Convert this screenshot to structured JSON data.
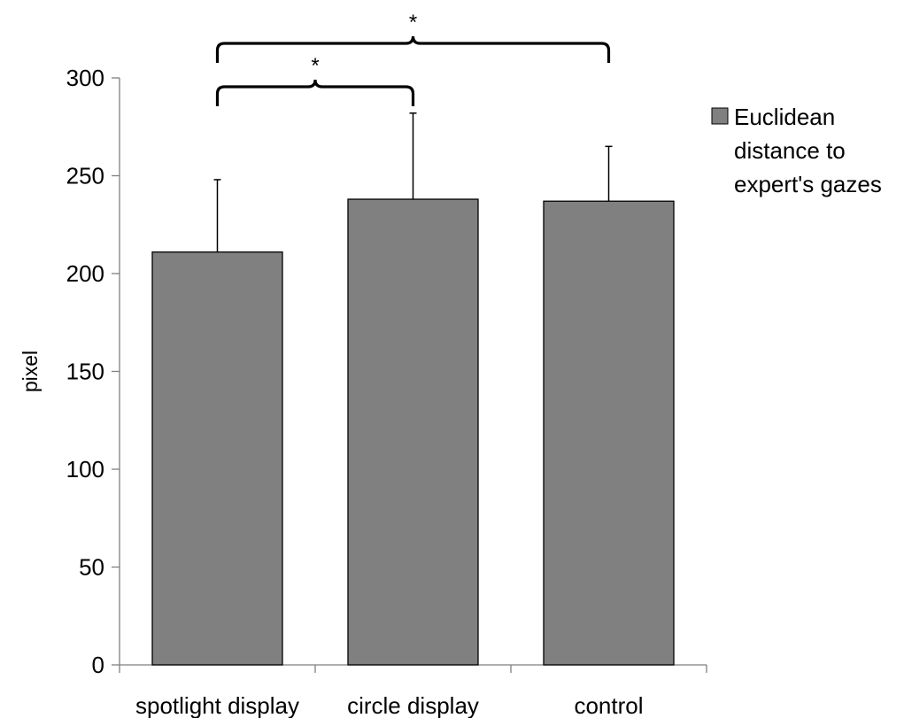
{
  "chart_data": {
    "type": "bar",
    "title": "",
    "xlabel": "",
    "ylabel": "pixel",
    "ylim": [
      0,
      300
    ],
    "yticks": [
      0,
      50,
      100,
      150,
      200,
      250,
      300
    ],
    "grid": false,
    "legend_position": "right",
    "categories": [
      "spotlight display",
      "circle display",
      "control"
    ],
    "series": [
      {
        "name": "Euclidean distance to expert's gazes",
        "name_lines": [
          "Euclidean",
          "distance to",
          "expert's gazes"
        ],
        "values": [
          211,
          238,
          237
        ],
        "error_upper": [
          37,
          44,
          28
        ],
        "color": "#808080"
      }
    ],
    "significance": [
      {
        "from": "spotlight display",
        "to": "circle display",
        "label": "*"
      },
      {
        "from": "spotlight display",
        "to": "control",
        "label": "*"
      }
    ]
  }
}
